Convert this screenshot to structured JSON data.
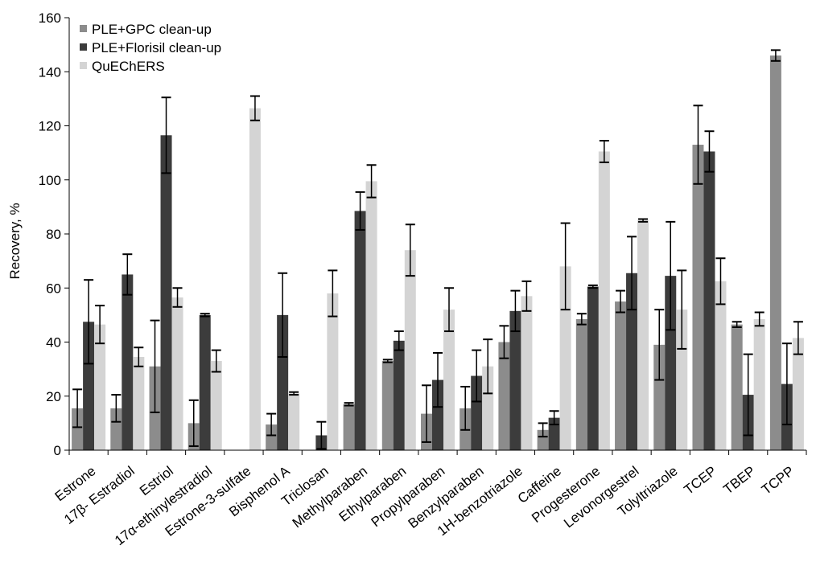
{
  "chart_data": {
    "type": "bar",
    "title": "",
    "xlabel": "",
    "ylabel": "Recovery, %",
    "ylim": [
      0,
      160
    ],
    "yticks": [
      0,
      20,
      40,
      60,
      80,
      100,
      120,
      140,
      160
    ],
    "grid": false,
    "legend_position": "top-left",
    "categories": [
      "Estrone",
      "17β- Estradiol",
      "Estriol",
      "17α-ethinylestradiol",
      "Estrone-3-sulfate",
      "Bisphenol A",
      "Triclosan",
      "Methylparaben",
      "Ethylparaben",
      "Propylparaben",
      "Benzylparaben",
      "1H-benzotriazole",
      "Caffeine",
      "Progesterone",
      "Levonorgestrel",
      "Tolyltriazole",
      "TCEP",
      "TBEP",
      "TCPP"
    ],
    "series": [
      {
        "name": "PLE+GPC  clean-up",
        "color": "#8c8c8c",
        "values": [
          15.5,
          15.5,
          31,
          10,
          null,
          9.5,
          null,
          17,
          33,
          13.5,
          15.5,
          40,
          7.5,
          48.5,
          55,
          39,
          113,
          46.5,
          146
        ],
        "errors": [
          7,
          5,
          17,
          8.5,
          null,
          4,
          null,
          0.5,
          0.5,
          10.5,
          8,
          6,
          2.5,
          2,
          4,
          13,
          14.5,
          1,
          2
        ]
      },
      {
        "name": "PLE+Florisil clean-up",
        "color": "#3c3c3c",
        "values": [
          47.5,
          65,
          116.5,
          50,
          null,
          50,
          5.5,
          88.5,
          40.5,
          26,
          27.5,
          51.5,
          12,
          60.5,
          65.5,
          64.5,
          110.5,
          20.5,
          24.5
        ],
        "errors": [
          15.5,
          7.5,
          14,
          0.5,
          null,
          15.5,
          5,
          7,
          3.5,
          10,
          9.5,
          7.5,
          2.5,
          0.5,
          13.5,
          20,
          7.5,
          15,
          15
        ]
      },
      {
        "name": "QuEChERS",
        "color": "#d4d4d4",
        "values": [
          46.5,
          34.5,
          56.5,
          33,
          126.5,
          21,
          58,
          99.5,
          74,
          52,
          31,
          57,
          68,
          110.5,
          85,
          52,
          62.5,
          48.5,
          41.5
        ],
        "errors": [
          7,
          3.5,
          3.5,
          4,
          4.5,
          0.5,
          8.5,
          6,
          9.5,
          8,
          10,
          5.5,
          16,
          4,
          0.5,
          14.5,
          8.5,
          2.5,
          6
        ]
      }
    ]
  }
}
